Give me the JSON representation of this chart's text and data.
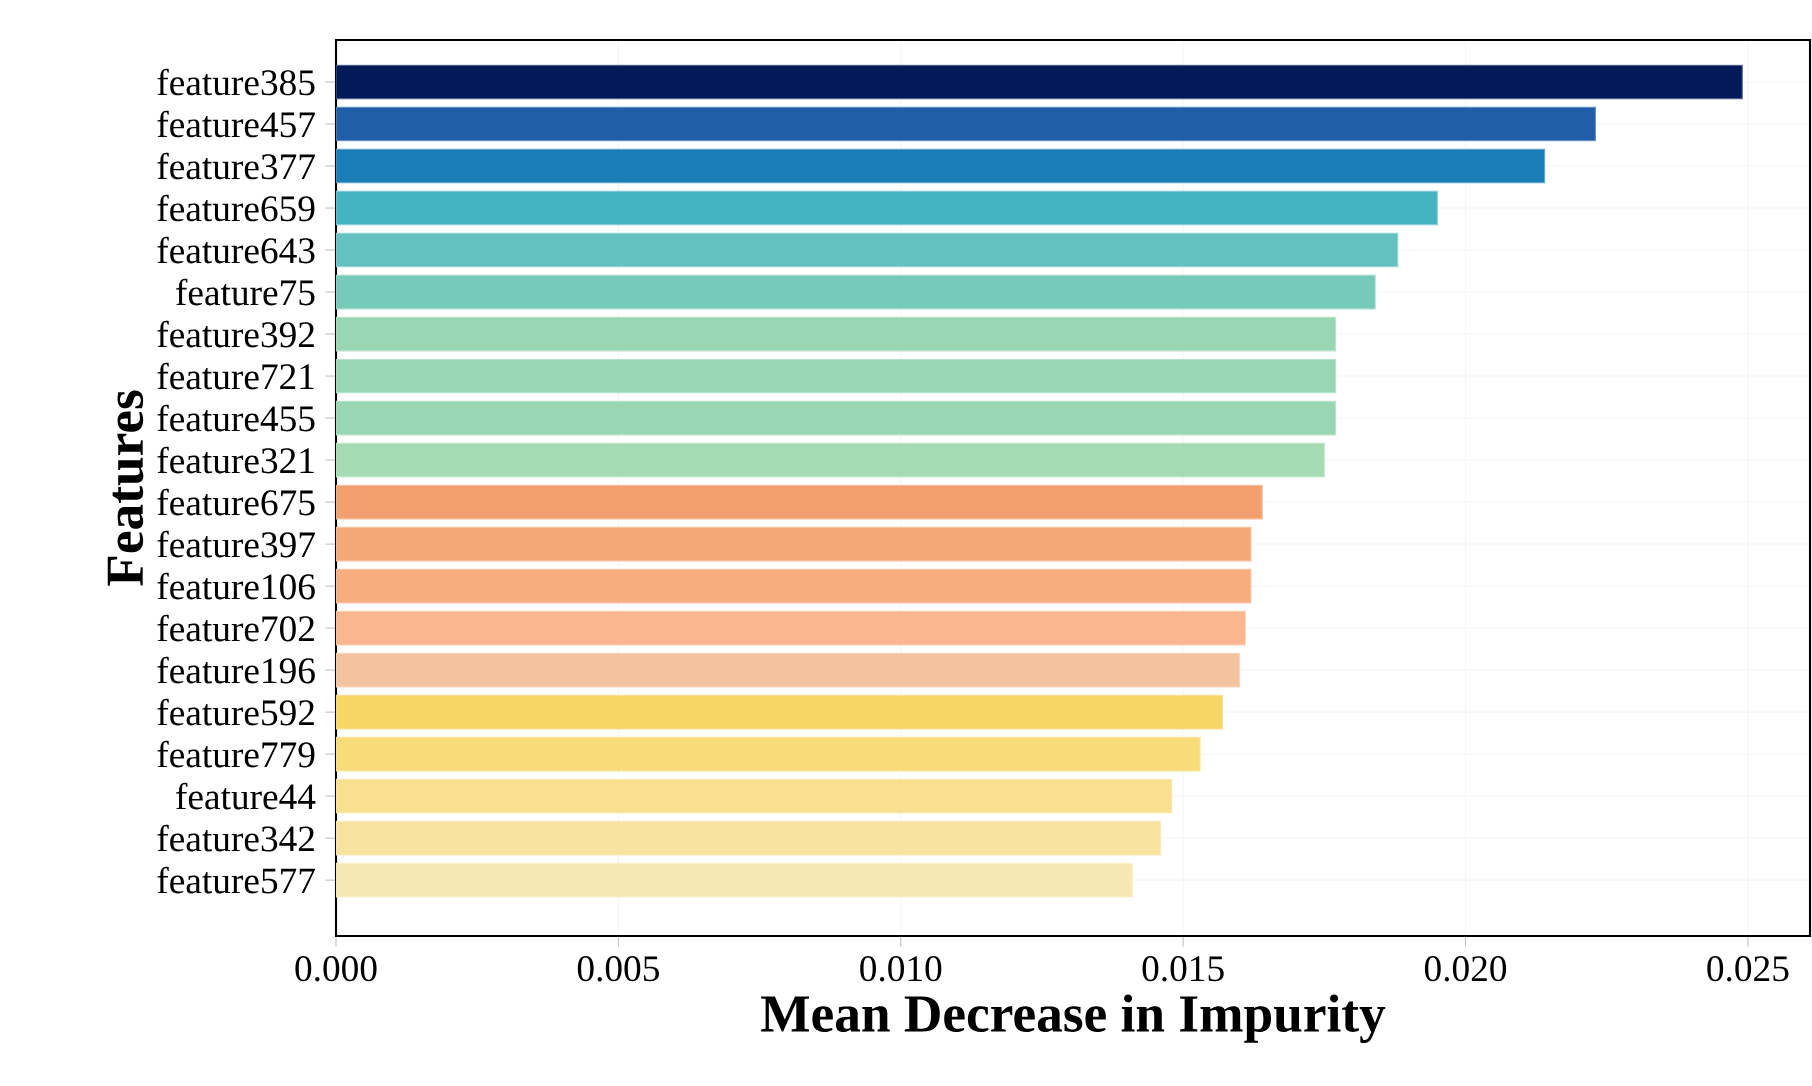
{
  "chart_data": {
    "type": "bar",
    "orientation": "horizontal",
    "xlabel": "Mean Decrease in Impurity",
    "ylabel": "Features",
    "categories": [
      "feature385",
      "feature457",
      "feature377",
      "feature659",
      "feature643",
      "feature75",
      "feature392",
      "feature721",
      "feature455",
      "feature321",
      "feature675",
      "feature397",
      "feature106",
      "feature702",
      "feature196",
      "feature592",
      "feature779",
      "feature44",
      "feature342",
      "feature577"
    ],
    "values": [
      0.0249,
      0.0223,
      0.0214,
      0.0195,
      0.0188,
      0.0184,
      0.0177,
      0.0177,
      0.0177,
      0.0175,
      0.0164,
      0.0162,
      0.0162,
      0.0161,
      0.016,
      0.0157,
      0.0153,
      0.0148,
      0.0146,
      0.0141
    ],
    "colors": [
      "#021b58",
      "#215ea8",
      "#1b7db8",
      "#44b3c2",
      "#63c1bf",
      "#77c9b9",
      "#99d6b3",
      "#99d6b3",
      "#99d6b3",
      "#a5dbb3",
      "#f2a06e",
      "#f5a877",
      "#f8ad80",
      "#f9b68f",
      "#f2c39e",
      "#f7d567",
      "#f9dc7a",
      "#f8e090",
      "#f7e39f",
      "#f6e8b4"
    ],
    "xlim": [
      0,
      0.0261
    ],
    "xticks": [
      {
        "value": 0,
        "label": "0.000"
      },
      {
        "value": 0.005,
        "label": "0.005"
      },
      {
        "value": 0.01,
        "label": "0.010"
      },
      {
        "value": 0.015,
        "label": "0.015"
      },
      {
        "value": 0.02,
        "label": "0.020"
      },
      {
        "value": 0.025,
        "label": "0.025"
      }
    ],
    "grid": true
  }
}
